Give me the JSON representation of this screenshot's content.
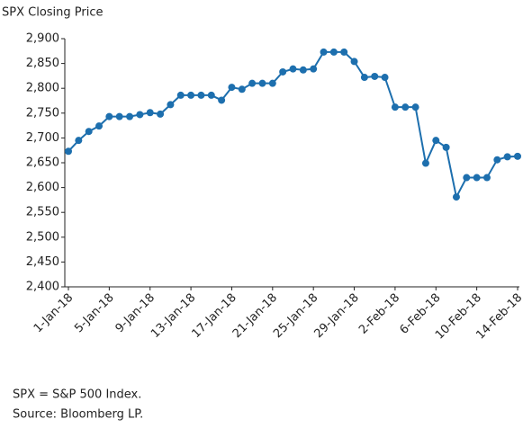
{
  "chart_data": {
    "type": "line",
    "title": "SPX Closing Price",
    "categories": [
      "1-Jan-18",
      null,
      null,
      null,
      "5-Jan-18",
      null,
      null,
      null,
      "9-Jan-18",
      null,
      null,
      null,
      "13-Jan-18",
      null,
      null,
      null,
      "17-Jan-18",
      null,
      null,
      null,
      "21-Jan-18",
      null,
      null,
      null,
      "25-Jan-18",
      null,
      null,
      null,
      "29-Jan-18",
      null,
      null,
      null,
      "2-Feb-18",
      null,
      null,
      null,
      "6-Feb-18",
      null,
      null,
      null,
      "10-Feb-18",
      null,
      null,
      null,
      "14-Feb-18"
    ],
    "series": [
      {
        "name": "SPX",
        "color": "#1d6fae",
        "values": [
          2673,
          2695,
          2713,
          2724,
          2743,
          2743,
          2743,
          2747,
          2751,
          2748,
          2767,
          2786,
          2786,
          2786,
          2786,
          2776,
          2802,
          2798,
          2810,
          2810,
          2810,
          2833,
          2839,
          2837,
          2839,
          2873,
          2873,
          2873,
          2854,
          2822,
          2824,
          2822,
          2762,
          2762,
          2762,
          2649,
          2695,
          2681,
          2581,
          2620,
          2620,
          2620,
          2656,
          2662,
          2663
        ]
      }
    ],
    "ylim": [
      2400,
      2900
    ],
    "yticks": [
      {
        "value": 2400,
        "label": "2,400"
      },
      {
        "value": 2450,
        "label": "2,450"
      },
      {
        "value": 2500,
        "label": "2,500"
      },
      {
        "value": 2550,
        "label": "2,550"
      },
      {
        "value": 2600,
        "label": "2,600"
      },
      {
        "value": 2650,
        "label": "2,650"
      },
      {
        "value": 2700,
        "label": "2,700"
      },
      {
        "value": 2750,
        "label": "2,750"
      },
      {
        "value": 2800,
        "label": "2,800"
      },
      {
        "value": 2850,
        "label": "2,850"
      },
      {
        "value": 2900,
        "label": "2,900"
      }
    ],
    "notes": [
      "SPX = S&P 500 Index.",
      "Source: Bloomberg LP."
    ]
  }
}
